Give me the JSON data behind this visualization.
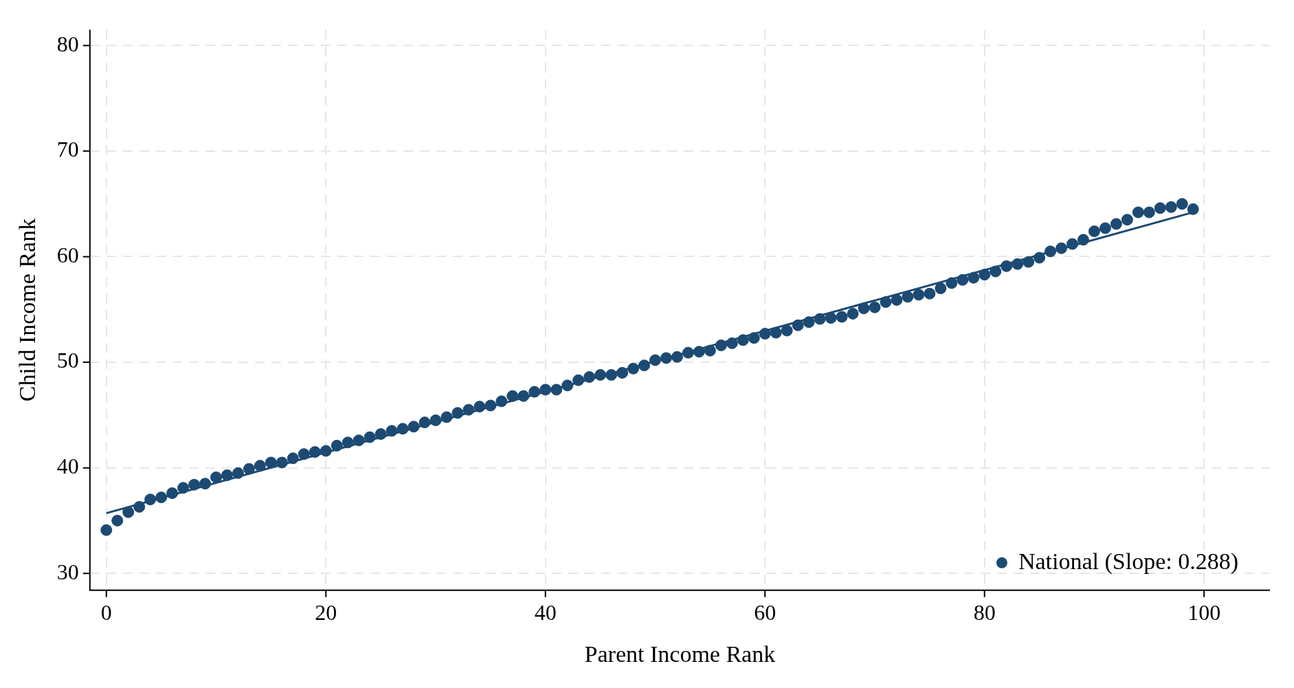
{
  "chart_data": {
    "type": "scatter",
    "xlabel": "Parent Income Rank",
    "ylabel": "Child Income Rank",
    "xlim": [
      -1.5,
      106
    ],
    "ylim": [
      28.4,
      81.5
    ],
    "xticks": [
      0,
      20,
      40,
      60,
      80,
      100
    ],
    "yticks": [
      30,
      40,
      50,
      60,
      70,
      80
    ],
    "grid": true,
    "legend": "bottom right",
    "series": [
      {
        "name": "National (Slope: 0.288)",
        "marker": "circle",
        "color": "#1c4a72",
        "x": [
          0,
          1,
          2,
          3,
          4,
          5,
          6,
          7,
          8,
          9,
          10,
          11,
          12,
          13,
          14,
          15,
          16,
          17,
          18,
          19,
          20,
          21,
          22,
          23,
          24,
          25,
          26,
          27,
          28,
          29,
          30,
          31,
          32,
          33,
          34,
          35,
          36,
          37,
          38,
          39,
          40,
          41,
          42,
          43,
          44,
          45,
          46,
          47,
          48,
          49,
          50,
          51,
          52,
          53,
          54,
          55,
          56,
          57,
          58,
          59,
          60,
          61,
          62,
          63,
          64,
          65,
          66,
          67,
          68,
          69,
          70,
          71,
          72,
          73,
          74,
          75,
          76,
          77,
          78,
          79,
          80,
          81,
          82,
          83,
          84,
          85,
          86,
          87,
          88,
          89,
          90,
          91,
          92,
          93,
          94,
          95,
          96,
          97,
          98,
          99
        ],
        "values": [
          34.1,
          35.0,
          35.8,
          36.3,
          37.0,
          37.2,
          37.6,
          38.1,
          38.4,
          38.5,
          39.1,
          39.3,
          39.5,
          39.9,
          40.2,
          40.5,
          40.5,
          40.9,
          41.3,
          41.5,
          41.6,
          42.1,
          42.4,
          42.6,
          42.9,
          43.2,
          43.5,
          43.7,
          43.9,
          44.3,
          44.5,
          44.8,
          45.2,
          45.5,
          45.8,
          45.9,
          46.3,
          46.8,
          46.8,
          47.2,
          47.4,
          47.4,
          47.8,
          48.3,
          48.6,
          48.8,
          48.8,
          49.0,
          49.4,
          49.7,
          50.2,
          50.4,
          50.5,
          50.9,
          51.0,
          51.1,
          51.6,
          51.8,
          52.1,
          52.3,
          52.7,
          52.8,
          53.0,
          53.5,
          53.8,
          54.1,
          54.2,
          54.3,
          54.6,
          55.1,
          55.2,
          55.7,
          55.9,
          56.2,
          56.4,
          56.5,
          57.0,
          57.5,
          57.8,
          58.0,
          58.3,
          58.6,
          59.1,
          59.3,
          59.5,
          59.9,
          60.5,
          60.8,
          61.2,
          61.6,
          62.4,
          62.7,
          63.1,
          63.5,
          64.2,
          64.2,
          64.6,
          64.7,
          65.0,
          64.5
        ]
      },
      {
        "type": "line",
        "marker": "none",
        "color": "#1c4a72",
        "line_style": "solid",
        "x": [
          0,
          99
        ],
        "values": [
          35.7,
          64.2
        ]
      }
    ]
  }
}
